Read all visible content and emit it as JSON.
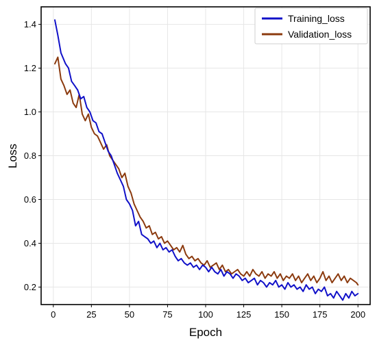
{
  "chart_data": {
    "type": "line",
    "title": "",
    "xlabel": "Epoch",
    "ylabel": "Loss",
    "xlim": [
      -8,
      208
    ],
    "ylim": [
      0.12,
      1.48
    ],
    "xticks": [
      0,
      25,
      50,
      75,
      100,
      125,
      150,
      175,
      200
    ],
    "yticks": [
      0.2,
      0.4,
      0.6,
      0.8,
      1.0,
      1.2,
      1.4
    ],
    "yticks_labels": [
      "0.2",
      "0.4",
      "0.6",
      "0.8",
      "1.0",
      "1.2",
      "1.4"
    ],
    "grid": true,
    "legend_position": "top-right",
    "series": [
      {
        "name": "Training_loss",
        "color": "#1010c8",
        "x": [
          1,
          3,
          5,
          8,
          10,
          12,
          14,
          16,
          18,
          20,
          22,
          24,
          26,
          28,
          30,
          32,
          34,
          36,
          38,
          40,
          42,
          44,
          46,
          48,
          50,
          52,
          54,
          56,
          58,
          60,
          62,
          64,
          66,
          68,
          70,
          72,
          74,
          76,
          78,
          80,
          82,
          84,
          86,
          88,
          90,
          92,
          94,
          96,
          98,
          100,
          102,
          104,
          106,
          108,
          110,
          112,
          114,
          116,
          118,
          120,
          122,
          124,
          126,
          128,
          130,
          132,
          134,
          136,
          138,
          140,
          142,
          144,
          146,
          148,
          150,
          152,
          154,
          156,
          158,
          160,
          162,
          164,
          166,
          168,
          170,
          172,
          174,
          176,
          178,
          180,
          182,
          184,
          186,
          188,
          190,
          192,
          194,
          196,
          198,
          200
        ],
        "y": [
          1.42,
          1.35,
          1.27,
          1.22,
          1.2,
          1.14,
          1.12,
          1.1,
          1.06,
          1.07,
          1.02,
          1.0,
          0.96,
          0.95,
          0.91,
          0.9,
          0.86,
          0.82,
          0.8,
          0.76,
          0.72,
          0.69,
          0.66,
          0.6,
          0.58,
          0.55,
          0.48,
          0.5,
          0.44,
          0.43,
          0.42,
          0.4,
          0.41,
          0.38,
          0.4,
          0.37,
          0.38,
          0.36,
          0.37,
          0.34,
          0.32,
          0.33,
          0.31,
          0.3,
          0.31,
          0.29,
          0.3,
          0.28,
          0.3,
          0.29,
          0.27,
          0.29,
          0.27,
          0.26,
          0.28,
          0.25,
          0.27,
          0.26,
          0.24,
          0.26,
          0.25,
          0.23,
          0.24,
          0.22,
          0.23,
          0.24,
          0.21,
          0.23,
          0.22,
          0.2,
          0.22,
          0.21,
          0.23,
          0.2,
          0.21,
          0.19,
          0.22,
          0.2,
          0.21,
          0.19,
          0.2,
          0.18,
          0.21,
          0.19,
          0.2,
          0.17,
          0.19,
          0.18,
          0.2,
          0.16,
          0.17,
          0.15,
          0.18,
          0.16,
          0.14,
          0.17,
          0.15,
          0.18,
          0.16,
          0.17
        ]
      },
      {
        "name": "Validation_loss",
        "color": "#8b3a0e",
        "x": [
          1,
          3,
          5,
          7,
          9,
          11,
          13,
          15,
          17,
          19,
          21,
          23,
          25,
          27,
          29,
          31,
          33,
          35,
          37,
          39,
          41,
          43,
          45,
          47,
          49,
          51,
          53,
          55,
          57,
          59,
          61,
          63,
          65,
          67,
          69,
          71,
          73,
          75,
          77,
          79,
          81,
          83,
          85,
          87,
          89,
          91,
          93,
          95,
          97,
          99,
          101,
          103,
          105,
          107,
          109,
          111,
          113,
          115,
          117,
          119,
          121,
          123,
          125,
          127,
          129,
          131,
          133,
          135,
          137,
          139,
          141,
          143,
          145,
          147,
          149,
          151,
          153,
          155,
          157,
          159,
          161,
          163,
          165,
          167,
          169,
          171,
          173,
          175,
          177,
          179,
          181,
          183,
          185,
          187,
          189,
          191,
          193,
          195,
          197,
          199,
          200
        ],
        "y": [
          1.22,
          1.25,
          1.15,
          1.12,
          1.08,
          1.1,
          1.04,
          1.02,
          1.08,
          0.99,
          0.96,
          0.99,
          0.93,
          0.9,
          0.89,
          0.86,
          0.83,
          0.85,
          0.8,
          0.78,
          0.76,
          0.74,
          0.7,
          0.72,
          0.66,
          0.63,
          0.58,
          0.55,
          0.52,
          0.5,
          0.47,
          0.48,
          0.44,
          0.45,
          0.42,
          0.43,
          0.4,
          0.41,
          0.39,
          0.37,
          0.38,
          0.36,
          0.39,
          0.35,
          0.33,
          0.34,
          0.32,
          0.33,
          0.31,
          0.3,
          0.32,
          0.29,
          0.3,
          0.31,
          0.28,
          0.3,
          0.27,
          0.28,
          0.26,
          0.27,
          0.28,
          0.26,
          0.25,
          0.27,
          0.25,
          0.28,
          0.26,
          0.25,
          0.27,
          0.24,
          0.26,
          0.25,
          0.27,
          0.24,
          0.26,
          0.23,
          0.25,
          0.24,
          0.26,
          0.23,
          0.25,
          0.22,
          0.24,
          0.26,
          0.23,
          0.25,
          0.22,
          0.24,
          0.27,
          0.23,
          0.25,
          0.22,
          0.24,
          0.26,
          0.23,
          0.25,
          0.22,
          0.24,
          0.23,
          0.22,
          0.21
        ]
      }
    ]
  }
}
